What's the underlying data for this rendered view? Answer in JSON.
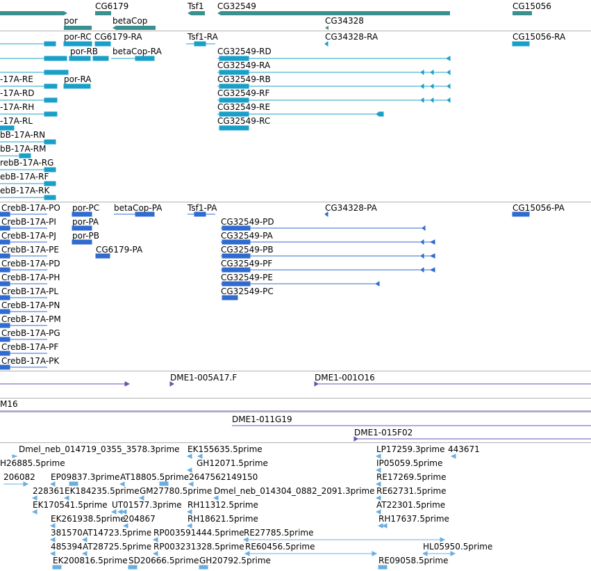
{
  "gene_track": {
    "labels": [
      "CG6179",
      "Tsf1",
      "CG32549",
      "CG15056",
      "por",
      "betaCop",
      "CG34328"
    ],
    "color": "#2e8b8b"
  },
  "transcripts_a": {
    "color": "#1aa0c8",
    "labels": [
      "por-RC",
      "CG6179-RA",
      "Tsf1-RA",
      "CG34328-RA",
      "CG15056-RA",
      "por-RB",
      "betaCop-RA",
      "CG32549-RD",
      "CG32549-RA",
      "-17A-RE",
      "por-RA",
      "CG32549-RB",
      "-17A-RD",
      "CG32549-RF",
      "-17A-RH",
      "CG32549-RE",
      "-17A-RL",
      "CG32549-RC",
      "bB-17A-RN",
      "bB-17A-RM",
      "rebB-17A-RG",
      "ebB-17A-RF",
      "ebB-17A-RK"
    ]
  },
  "transcripts_b": {
    "color": "#2f6bd0",
    "labels": [
      "CrebB-17A-PO",
      "por-PC",
      "betaCop-PA",
      "Tsf1-PA",
      "CG34328-PA",
      "CG15056-PA",
      "CrebB-17A-PI",
      "CG32549-PD",
      "CrebB-17A-PJ",
      "por-PA",
      "CG32549-PA",
      "CrebB-17A-PE",
      "por-PB",
      "CG6179-PA",
      "CG32549-PB",
      "CrebB-17A-PD",
      "CG32549-PF",
      "CrebB-17A-PH",
      "CG32549-PE",
      "CrebB-17A-PL",
      "CG32549-PC",
      "CrebB-17A-PN",
      "CrebB-17A-PM",
      "CrebB-17A-PG",
      "CrebB-17A-PF",
      "CrebB-17A-PK"
    ]
  },
  "clones": {
    "color": "#6a4fb0",
    "labels": [
      "DME1-005A17.F",
      "DME1-001O16",
      "M16",
      "DME1-011G19",
      "DME1-015F02"
    ]
  },
  "ests": {
    "color": "#6aaee0",
    "labels": [
      "Dmel_neb_014719_0355_3578.3prime",
      "EK155635.5prime",
      "LP17259.3prime",
      "443671",
      "H26885.5prime",
      "GH12071.5prime",
      "IP05059.5prime",
      "206082",
      "EP09837.3prime",
      "AT18805.5prime",
      "2647562149150",
      "RE17269.5prime",
      "228361",
      "EK184235.5prime",
      "GM27780.5prime",
      "Dmel_neb_014304_0882_2091.3prime",
      "RE62731.5prime",
      "EK170541.5prime",
      "UT01577.3prime",
      "RH11312.5prime",
      "AT22301.5prime",
      "EK261938.5prime",
      "204867",
      "RH18621.5prime",
      "RH17637.5prime",
      "381570",
      "AT14723.5prime",
      "RP003591444.5prime",
      "RE27785.5prime",
      "485394",
      "AT28725.5prime",
      "RP003231328.5prime",
      "RE60456.5prime",
      "HL05950.5prime",
      "EK200816.5prime",
      "SD20666.5prime",
      "GH20792.5prime",
      "RE09058.5prime"
    ]
  }
}
